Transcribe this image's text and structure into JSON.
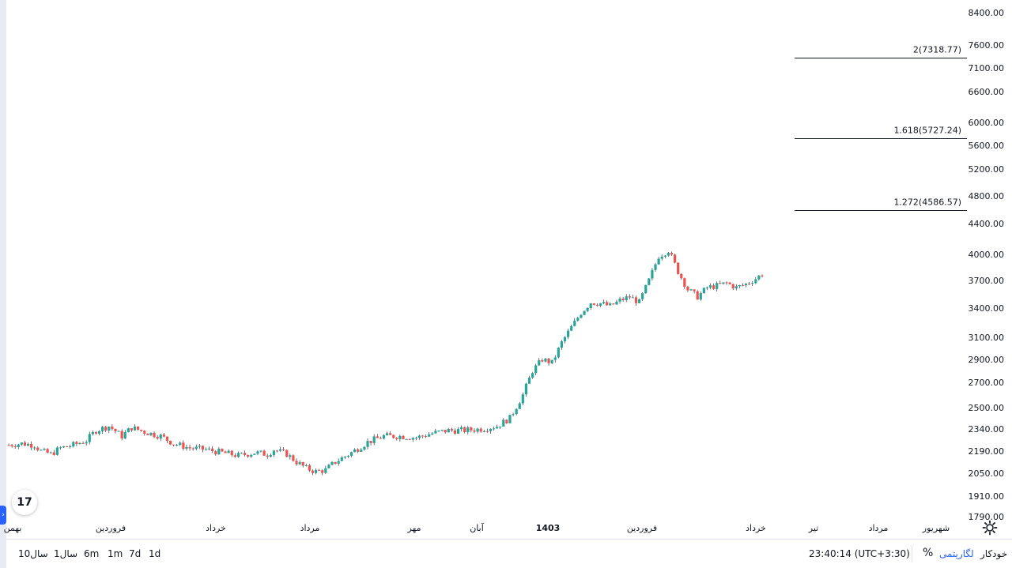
{
  "chart_data": {
    "type": "candlestick",
    "y_scale": "log",
    "ylim": [
      1790,
      8400
    ],
    "y_ticks": [
      "8400.00",
      "7600.00",
      "7100.00",
      "6600.00",
      "6000.00",
      "5600.00",
      "5200.00",
      "4800.00",
      "4400.00",
      "4000.00",
      "3700.00",
      "3400.00",
      "3100.00",
      "2900.00",
      "2700.00",
      "2500.00",
      "2340.00",
      "2190.00",
      "2050.00",
      "1910.00",
      "1790.00"
    ],
    "x_ticks": [
      {
        "label": "بهمن",
        "bold": false
      },
      {
        "label": "فروردین",
        "bold": false
      },
      {
        "label": "خرداد",
        "bold": false
      },
      {
        "label": "مرداد",
        "bold": false
      },
      {
        "label": "مهر",
        "bold": false
      },
      {
        "label": "آبان",
        "bold": false
      },
      {
        "label": "1403",
        "bold": true
      },
      {
        "label": "فروردین",
        "bold": false
      },
      {
        "label": "خرداد",
        "bold": false
      },
      {
        "label": "تیر",
        "bold": false
      },
      {
        "label": "مرداد",
        "bold": false
      },
      {
        "label": "شهریور",
        "bold": false
      }
    ],
    "fib_levels": [
      {
        "label": "2(7318.77)",
        "value": 7318.77
      },
      {
        "label": "1.618(5727.24)",
        "value": 5727.24
      },
      {
        "label": "1.272(4586.57)",
        "value": 4586.57
      }
    ],
    "price_path": [
      [
        0,
        2230
      ],
      [
        4,
        2240
      ],
      [
        8,
        2230
      ],
      [
        10,
        2190
      ],
      [
        13,
        2170
      ],
      [
        16,
        2210
      ],
      [
        20,
        2230
      ],
      [
        24,
        2260
      ],
      [
        27,
        2330
      ],
      [
        31,
        2360
      ],
      [
        35,
        2290
      ],
      [
        38,
        2350
      ],
      [
        42,
        2320
      ],
      [
        47,
        2290
      ],
      [
        51,
        2240
      ],
      [
        56,
        2210
      ],
      [
        61,
        2200
      ],
      [
        66,
        2180
      ],
      [
        71,
        2160
      ],
      [
        76,
        2180
      ],
      [
        80,
        2170
      ],
      [
        82,
        2200
      ],
      [
        86,
        2170
      ],
      [
        89,
        2120
      ],
      [
        92,
        2080
      ],
      [
        95,
        2060
      ],
      [
        98,
        2070
      ],
      [
        101,
        2120
      ],
      [
        106,
        2180
      ],
      [
        111,
        2250
      ],
      [
        116,
        2290
      ],
      [
        121,
        2290
      ],
      [
        126,
        2280
      ],
      [
        131,
        2310
      ],
      [
        136,
        2330
      ],
      [
        141,
        2330
      ],
      [
        146,
        2340
      ],
      [
        151,
        2360
      ],
      [
        155,
        2420
      ],
      [
        159,
        2600
      ],
      [
        162,
        2800
      ],
      [
        165,
        2900
      ],
      [
        168,
        2870
      ],
      [
        171,
        3050
      ],
      [
        174,
        3200
      ],
      [
        177,
        3350
      ],
      [
        180,
        3460
      ],
      [
        183,
        3450
      ],
      [
        186,
        3420
      ],
      [
        189,
        3480
      ],
      [
        192,
        3520
      ],
      [
        195,
        3460
      ],
      [
        198,
        3700
      ],
      [
        201,
        3980
      ],
      [
        204,
        4050
      ],
      [
        207,
        3800
      ],
      [
        210,
        3600
      ],
      [
        213,
        3520
      ],
      [
        216,
        3620
      ],
      [
        219,
        3640
      ],
      [
        222,
        3670
      ],
      [
        225,
        3620
      ],
      [
        228,
        3660
      ],
      [
        231,
        3720
      ],
      [
        233,
        3770
      ]
    ],
    "colors": {
      "up": "#26a69a",
      "down": "#ef5350",
      "wick": "#131722"
    }
  },
  "time_ranges": [
    "10سال",
    "1سال",
    "6m",
    "1m",
    "7d",
    "1d"
  ],
  "clock": "23:40:14 (UTC+3:30)",
  "percent_label": "%",
  "log_label": "لگاریتمی",
  "auto_label": "خودکار",
  "logo_text": "17"
}
